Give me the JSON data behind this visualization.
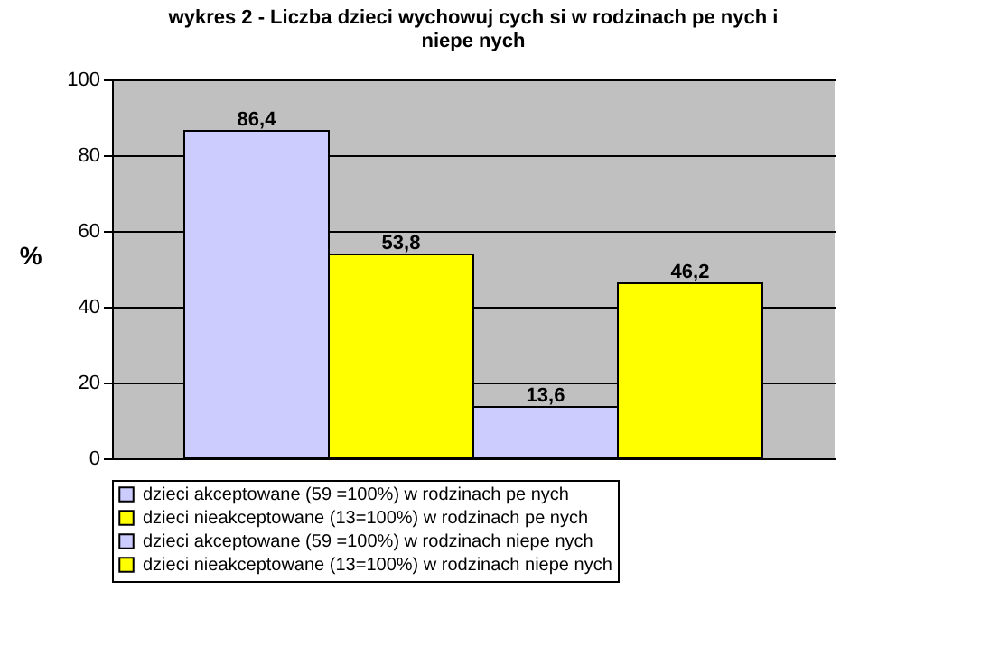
{
  "chart_data": {
    "type": "bar",
    "title": "wykres 2 - Liczba dzieci wychowuj cych si   w rodzinach pe nych i niepe nych",
    "ylabel": "%",
    "categories": [
      null
    ],
    "series": [
      {
        "name": "dzieci akceptowane (59 =100%) w rodzinach pe nych",
        "color": "#ccccff",
        "values": [
          86.4
        ],
        "value_labels": [
          "86,4"
        ]
      },
      {
        "name": "dzieci nieakceptowane (13=100%) w rodzinach pe nych",
        "color": "#ffff00",
        "values": [
          53.8
        ],
        "value_labels": [
          "53,8"
        ]
      },
      {
        "name": "dzieci akceptowane (59 =100%) w rodzinach niepe nych",
        "color": "#ccccff",
        "values": [
          13.6
        ],
        "value_labels": [
          "13,6"
        ]
      },
      {
        "name": "dzieci nieakceptowane (13=100%) w rodzinach niepe nych",
        "color": "#ffff00",
        "values": [
          46.2
        ],
        "value_labels": [
          "46,2"
        ]
      }
    ],
    "ylim": [
      0,
      100
    ],
    "yticks": [
      0,
      20,
      40,
      60,
      80,
      100
    ],
    "grid": "y",
    "legend": "bottom"
  }
}
